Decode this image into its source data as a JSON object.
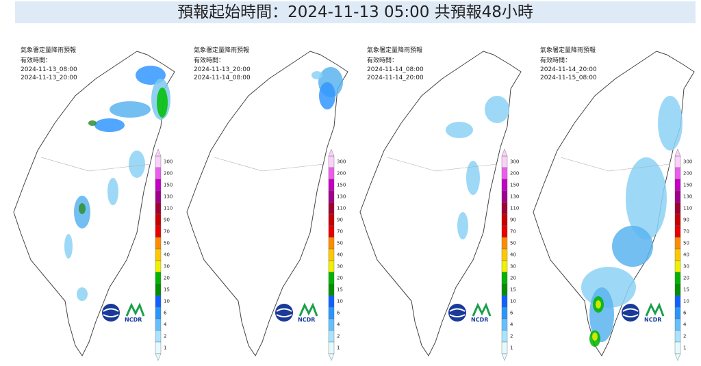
{
  "header": {
    "title": "預報起始時間：2024-11-13 05:00  共預報48小時"
  },
  "panels": [
    {
      "title": "氣象署定量降雨預報",
      "valid_label": "有效時間：",
      "start": "2024-11-13_08:00",
      "end": "2024-11-13_20:00"
    },
    {
      "title": "氣象署定量降雨預報",
      "valid_label": "有效時間：",
      "start": "2024-11-13_20:00",
      "end": "2024-11-14_08:00"
    },
    {
      "title": "氣象署定量降雨預報",
      "valid_label": "有效時間：",
      "start": "2024-11-14_08:00",
      "end": "2024-11-14_20:00"
    },
    {
      "title": "氣象署定量降雨預報",
      "valid_label": "有效時間：",
      "start": "2024-11-14_20:00",
      "end": "2024-11-15_08:00"
    }
  ],
  "legend": [
    "300",
    "200",
    "150",
    "130",
    "110",
    "90",
    "70",
    "50",
    "40",
    "30",
    "20",
    "15",
    "10",
    "6",
    "4",
    "2",
    "1"
  ],
  "logo_text": "NCDR"
}
